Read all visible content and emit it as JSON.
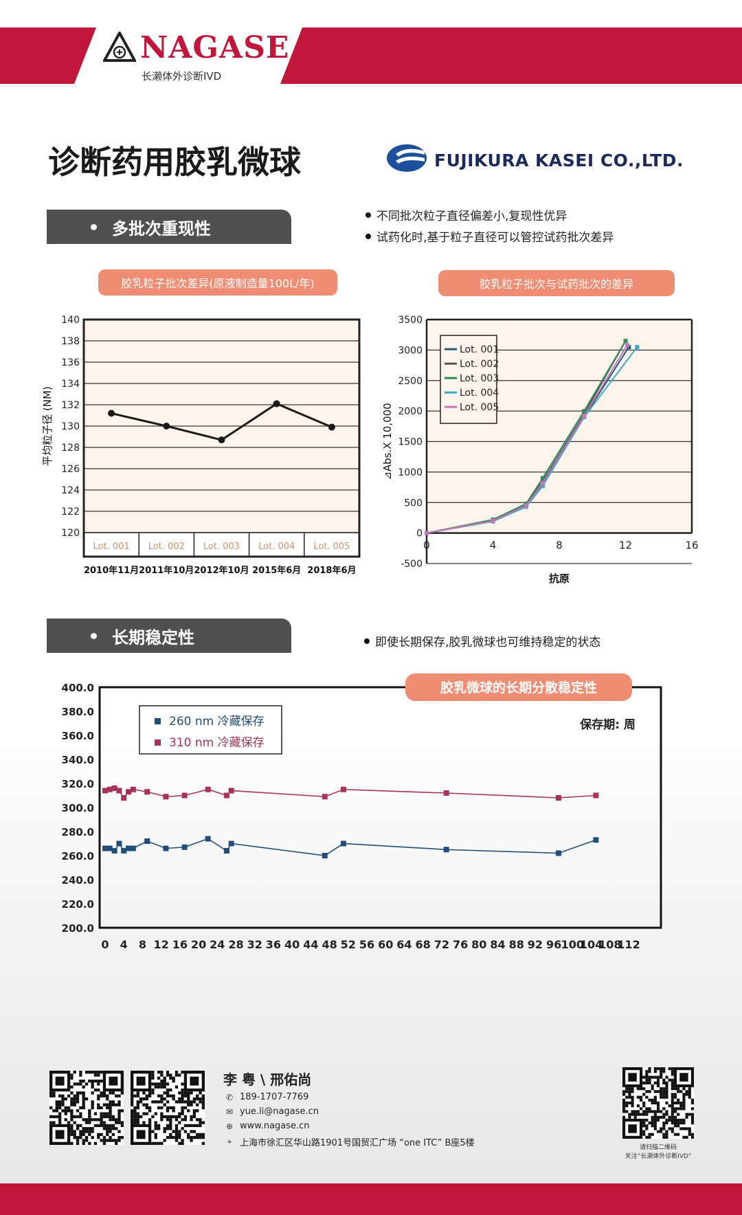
{
  "brand": {
    "name": "NAGASE",
    "subtitle": "长濑体外诊断IVD",
    "colors": {
      "red": "#c0163a",
      "accent": "#ee8d74",
      "header_gray": "#505050"
    }
  },
  "title": "诊断药用胶乳微球",
  "partner": {
    "name": "FUJIKURA KASEI CO.,LTD."
  },
  "section1": {
    "header": "多批次重现性",
    "bullets": [
      "不同批次粒子直径偏差小,复现性优异",
      "试药化时,基于粒子直径可以管控试药批次差异"
    ]
  },
  "section2": {
    "header": "长期稳定性",
    "bullets": [
      "即使长期保存,胶乳微球也可维持稳定的状态"
    ]
  },
  "chart_data": [
    {
      "type": "line",
      "title": "胶乳粒子批次差异(原液制造量100L/年)",
      "ylabel": "平均粒子径 (NM)",
      "ylim": [
        120,
        140
      ],
      "yticks": [
        "120",
        "122",
        "124",
        "126",
        "128",
        "130",
        "132",
        "134",
        "136",
        "138",
        "140"
      ],
      "categories": [
        "Lot. 001",
        "Lot. 002",
        "Lot. 003",
        "Lot. 004",
        "Lot. 005"
      ],
      "dates": [
        "2010年11月",
        "2011年10月",
        "2012年10月",
        "2015年6月",
        "2018年6月"
      ],
      "values": [
        131.2,
        130.0,
        128.7,
        132.1,
        129.9
      ],
      "grid": true,
      "legend": "none"
    },
    {
      "type": "line",
      "title": "胶乳粒子批次与试药批次的差异",
      "xlabel": "抗原",
      "ylabel": "⊿Abs.X 10,000",
      "xlim": [
        0,
        16
      ],
      "ylim": [
        -500,
        3500
      ],
      "xticks": [
        "0",
        "4",
        "8",
        "12",
        "16"
      ],
      "yticks": [
        "-500",
        "0",
        "500",
        "1000",
        "1500",
        "2000",
        "2500",
        "3000",
        "3500"
      ],
      "legend": "top-left",
      "series": [
        {
          "name": "Lot. 001",
          "color": "#1f5a7a",
          "x": [
            0,
            4,
            6,
            7,
            9.5,
            12.2
          ],
          "y": [
            0,
            200,
            450,
            800,
            1900,
            3050
          ]
        },
        {
          "name": "Lot. 002",
          "color": "#555555",
          "x": [
            0,
            4,
            6,
            7,
            9.5,
            12
          ],
          "y": [
            0,
            210,
            470,
            850,
            1950,
            3150
          ]
        },
        {
          "name": "Lot. 003",
          "color": "#2e8b57",
          "x": [
            0,
            4,
            6,
            7,
            9.5,
            12
          ],
          "y": [
            0,
            220,
            480,
            900,
            2000,
            3150
          ]
        },
        {
          "name": "Lot. 004",
          "color": "#3aa8c9",
          "x": [
            0,
            4,
            6,
            7,
            9.5,
            12.7
          ],
          "y": [
            0,
            190,
            430,
            770,
            1900,
            3050
          ]
        },
        {
          "name": "Lot. 005",
          "color": "#c774b8",
          "x": [
            0,
            4,
            6,
            7,
            9.5,
            12.1
          ],
          "y": [
            0,
            200,
            450,
            820,
            1920,
            3080
          ]
        }
      ]
    },
    {
      "type": "line",
      "title": "胶乳微球的长期分散稳定性",
      "annotation": "保存期: 周",
      "ylim": [
        200,
        400
      ],
      "xlim": [
        0,
        112
      ],
      "xticks": [
        "0",
        "4",
        "8",
        "12",
        "16",
        "20",
        "24",
        "28",
        "32",
        "36",
        "40",
        "44",
        "48",
        "52",
        "56",
        "60",
        "64",
        "68",
        "72",
        "76",
        "80",
        "84",
        "88",
        "92",
        "96",
        "100",
        "104",
        "108",
        "112"
      ],
      "yticks": [
        "200.0",
        "220.0",
        "240.0",
        "260.0",
        "280.0",
        "300.0",
        "320.0",
        "340.0",
        "360.0",
        "380.0",
        "400.0"
      ],
      "legend": "top-left",
      "series": [
        {
          "name": "260 nm 冷藏保存",
          "color": "#1f4e79",
          "x": [
            0,
            1,
            2,
            3,
            4,
            5,
            6,
            9,
            13,
            17,
            22,
            26,
            27,
            47,
            51,
            73,
            97,
            105
          ],
          "y": [
            266,
            266,
            264,
            270,
            264,
            266,
            266,
            272,
            266,
            267,
            274,
            264,
            270,
            260,
            270,
            265,
            262,
            273
          ]
        },
        {
          "name": "310 nm 冷藏保存",
          "color": "#a8325a",
          "x": [
            0,
            1,
            2,
            3,
            4,
            5,
            6,
            9,
            13,
            17,
            22,
            26,
            27,
            47,
            51,
            73,
            97,
            105
          ],
          "y": [
            314,
            315,
            316,
            314,
            308,
            313,
            315,
            313,
            309,
            310,
            315,
            310,
            314,
            309,
            315,
            312,
            308,
            310
          ]
        }
      ]
    }
  ],
  "contact": {
    "name": "李 粤 \\ 邢佑尚",
    "phone": "189-1707-7769",
    "email": "yue.li@nagase.cn",
    "web": "www.nagase.cn",
    "address": "上海市徐汇区华山路1901号国贸汇广场 “one ITC” B座5楼",
    "qr_caption_1": "请扫描二维码",
    "qr_caption_2": "关注“长濑体外诊断IVD”"
  }
}
